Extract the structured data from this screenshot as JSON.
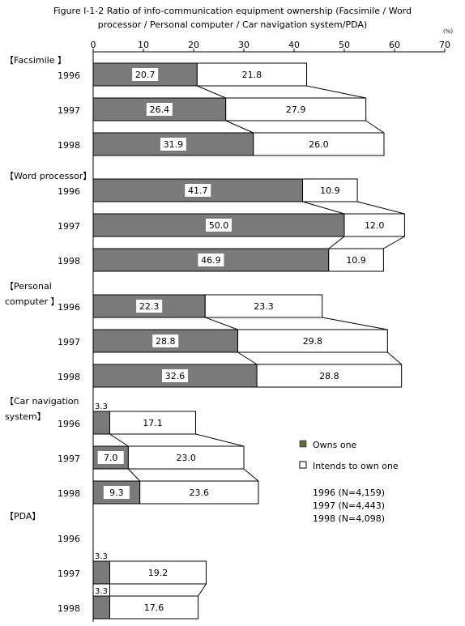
{
  "chart_data": {
    "type": "bar",
    "orientation": "horizontal",
    "stacked": true,
    "title_line1": "Figure I-1-2 Ratio of info-communication equipment ownership (Facsimile / Word",
    "title_line2": "processor / Personal computer / Car navigation system/PDA)",
    "unit": "(%)",
    "xlim": [
      0,
      70
    ],
    "ticks": [
      0,
      10,
      20,
      30,
      40,
      50,
      60,
      70
    ],
    "groups": [
      {
        "label": [
          "【Facsimile 】"
        ],
        "years": [
          "1996",
          "1997",
          "1998"
        ],
        "owns": [
          20.7,
          26.4,
          31.9
        ],
        "intends": [
          21.8,
          27.9,
          26.0
        ],
        "owns_labels": [
          "20.7",
          "26.4",
          "31.9"
        ],
        "intends_labels": [
          "21.8",
          "27.9",
          "26.0"
        ]
      },
      {
        "label": [
          "【Word processor】"
        ],
        "years": [
          "1996",
          "1997",
          "1998"
        ],
        "owns": [
          41.7,
          50.0,
          46.9
        ],
        "intends": [
          10.9,
          12.0,
          10.9
        ],
        "owns_labels": [
          "41.7",
          "50.0",
          "46.9"
        ],
        "intends_labels": [
          "10.9",
          "12.0",
          "10.9"
        ]
      },
      {
        "label": [
          "【Personal",
          "computer 】"
        ],
        "years": [
          "1996",
          "1997",
          "1998"
        ],
        "owns": [
          22.3,
          28.8,
          32.6
        ],
        "intends": [
          23.3,
          29.8,
          28.8
        ],
        "owns_labels": [
          "22.3",
          "28.8",
          "32.6"
        ],
        "intends_labels": [
          "23.3",
          "29.8",
          "28.8"
        ]
      },
      {
        "label": [
          "【Car navigation",
          "system】"
        ],
        "years": [
          "1996",
          "1997",
          "1998"
        ],
        "owns": [
          3.3,
          7.0,
          9.3
        ],
        "intends": [
          17.1,
          23.0,
          23.6
        ],
        "owns_labels": [
          "3.3",
          "7.0",
          "9.3"
        ],
        "intends_labels": [
          "17.1",
          "23.0",
          "23.6"
        ]
      },
      {
        "label": [
          "【PDA】"
        ],
        "years": [
          "1996",
          "1997",
          "1998"
        ],
        "owns": [
          null,
          3.3,
          3.3
        ],
        "intends": [
          null,
          19.2,
          17.6
        ],
        "owns_labels": [
          null,
          "3.3",
          "3.3"
        ],
        "intends_labels": [
          null,
          "19.2",
          "17.6"
        ]
      }
    ],
    "legend": [
      {
        "name": "Owns one",
        "color": "#666644"
      },
      {
        "name": "Intends to own one",
        "color": "#ffffff"
      }
    ],
    "notes": [
      "1996 (N=4,159)",
      "1997 (N=4,443)",
      "1998 (N=4,098)"
    ],
    "colors": {
      "owns": "#7a7a7a",
      "intends": "#ffffff",
      "stroke": "#000000"
    }
  }
}
